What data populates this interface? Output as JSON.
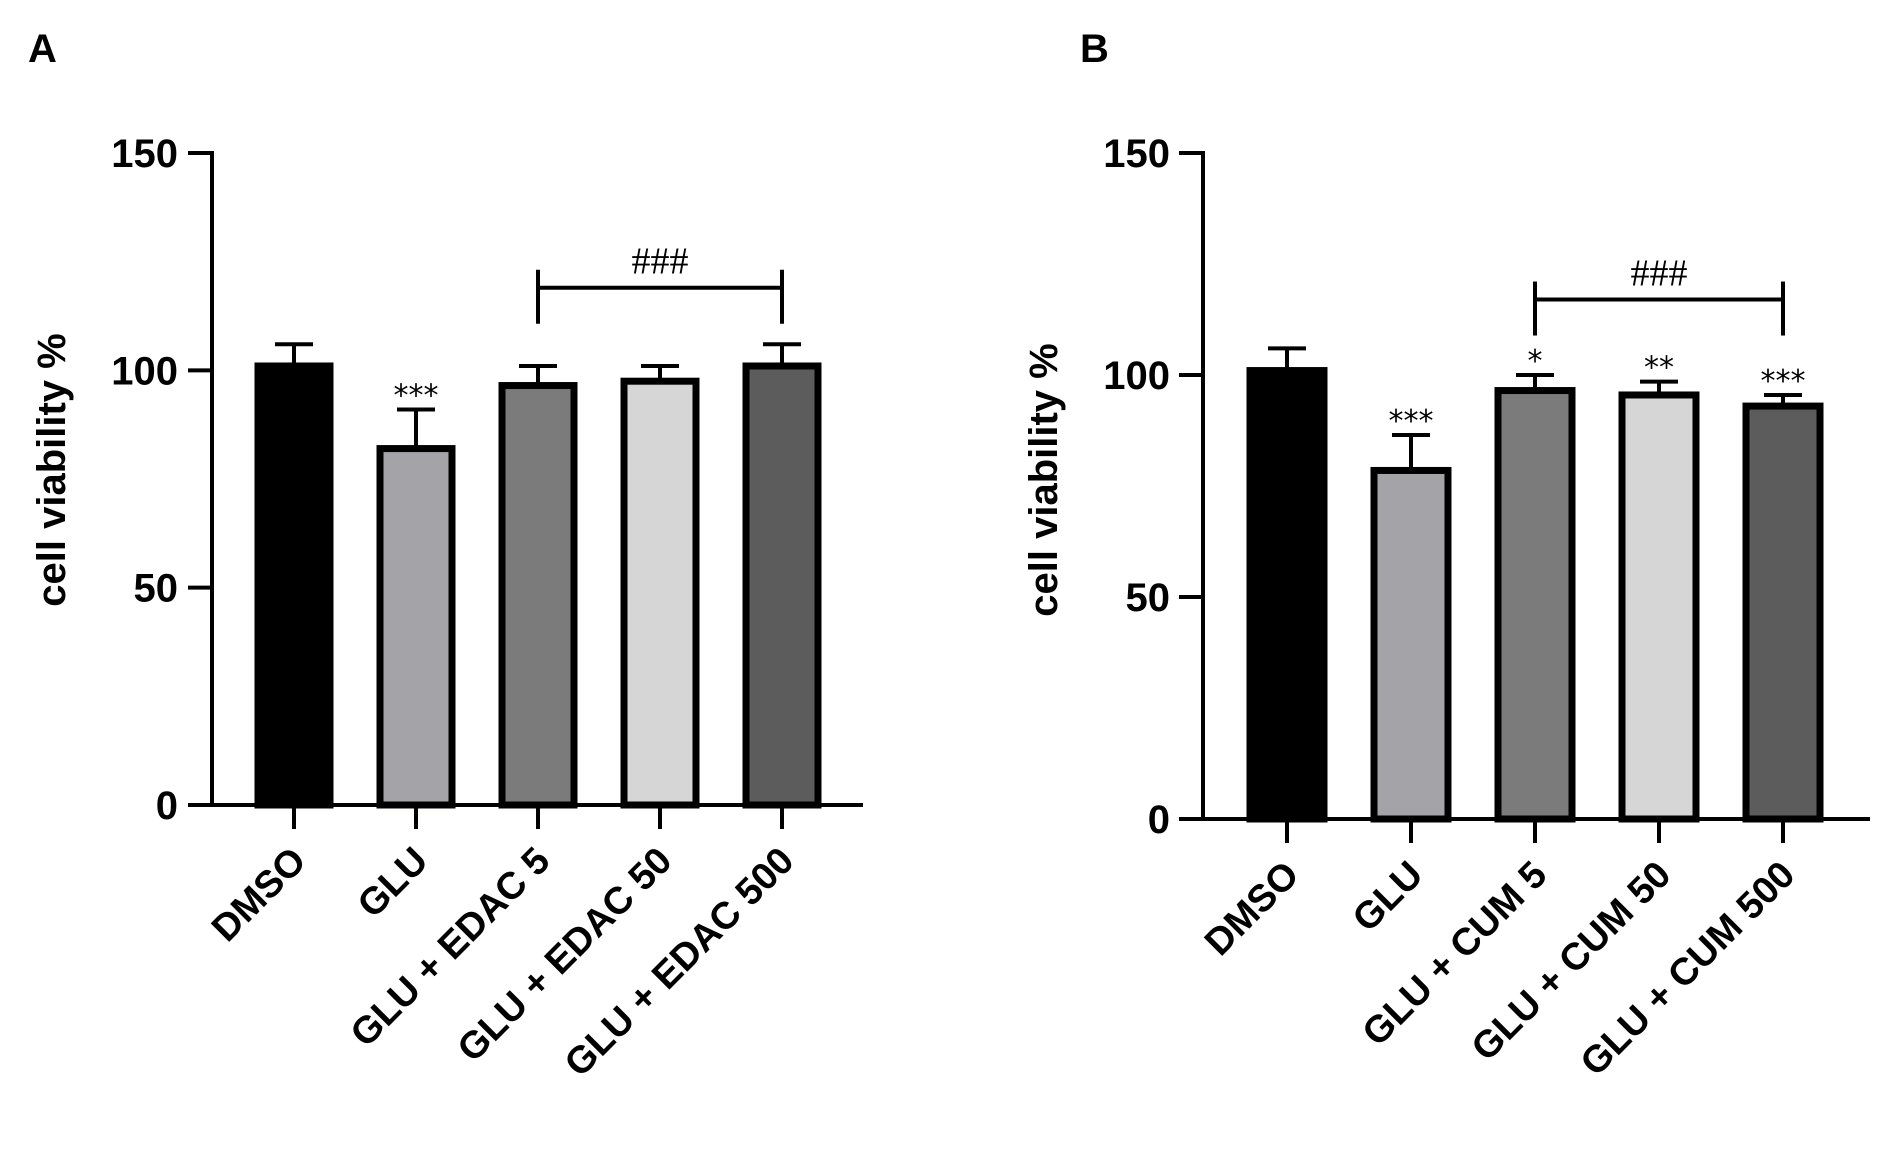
{
  "chart_data": [
    {
      "type": "bar",
      "panel_label": "A",
      "title": "",
      "xlabel": "",
      "ylabel": "cell viability %",
      "ylim": [
        0,
        150
      ],
      "yticks": [
        0,
        50,
        100,
        150
      ],
      "ytick_labels": [
        "0",
        "50",
        "100",
        "150"
      ],
      "categories": [
        "DMSO",
        "GLU",
        "GLU + EDAC  5",
        "GLU + EDAC 50",
        "GLU + EDAC 500"
      ],
      "values": [
        101,
        82,
        96.5,
        97.5,
        101
      ],
      "errors": [
        5,
        9,
        4.5,
        3.5,
        5
      ],
      "colors": [
        "#000000",
        "#a3a3a8",
        "#7b7b7b",
        "#d6d6d6",
        "#5c5c5c"
      ],
      "annotations": [
        "",
        "***",
        "",
        "",
        ""
      ],
      "bracket": {
        "from": 2,
        "to": 4,
        "level": 119,
        "label": "###"
      }
    },
    {
      "type": "bar",
      "panel_label": "B",
      "title": "",
      "xlabel": "",
      "ylabel": "cell viability %",
      "ylim": [
        0,
        150
      ],
      "yticks": [
        0,
        50,
        100,
        150
      ],
      "ytick_labels": [
        "0",
        "50",
        "100",
        "150"
      ],
      "categories": [
        "DMSO",
        "GLU",
        "GLU + CUM 5",
        "GLU + CUM 50",
        "GLU + CUM 500"
      ],
      "values": [
        101,
        78.5,
        96.5,
        95.5,
        93
      ],
      "errors": [
        5,
        8,
        3.5,
        3,
        2.5
      ],
      "colors": [
        "#000000",
        "#a3a3a8",
        "#7b7b7b",
        "#d6d6d6",
        "#5c5c5c"
      ],
      "annotations": [
        "",
        "***",
        "*",
        "**",
        "***"
      ],
      "bracket": {
        "from": 2,
        "to": 4,
        "level": 117,
        "label": "###"
      }
    }
  ]
}
